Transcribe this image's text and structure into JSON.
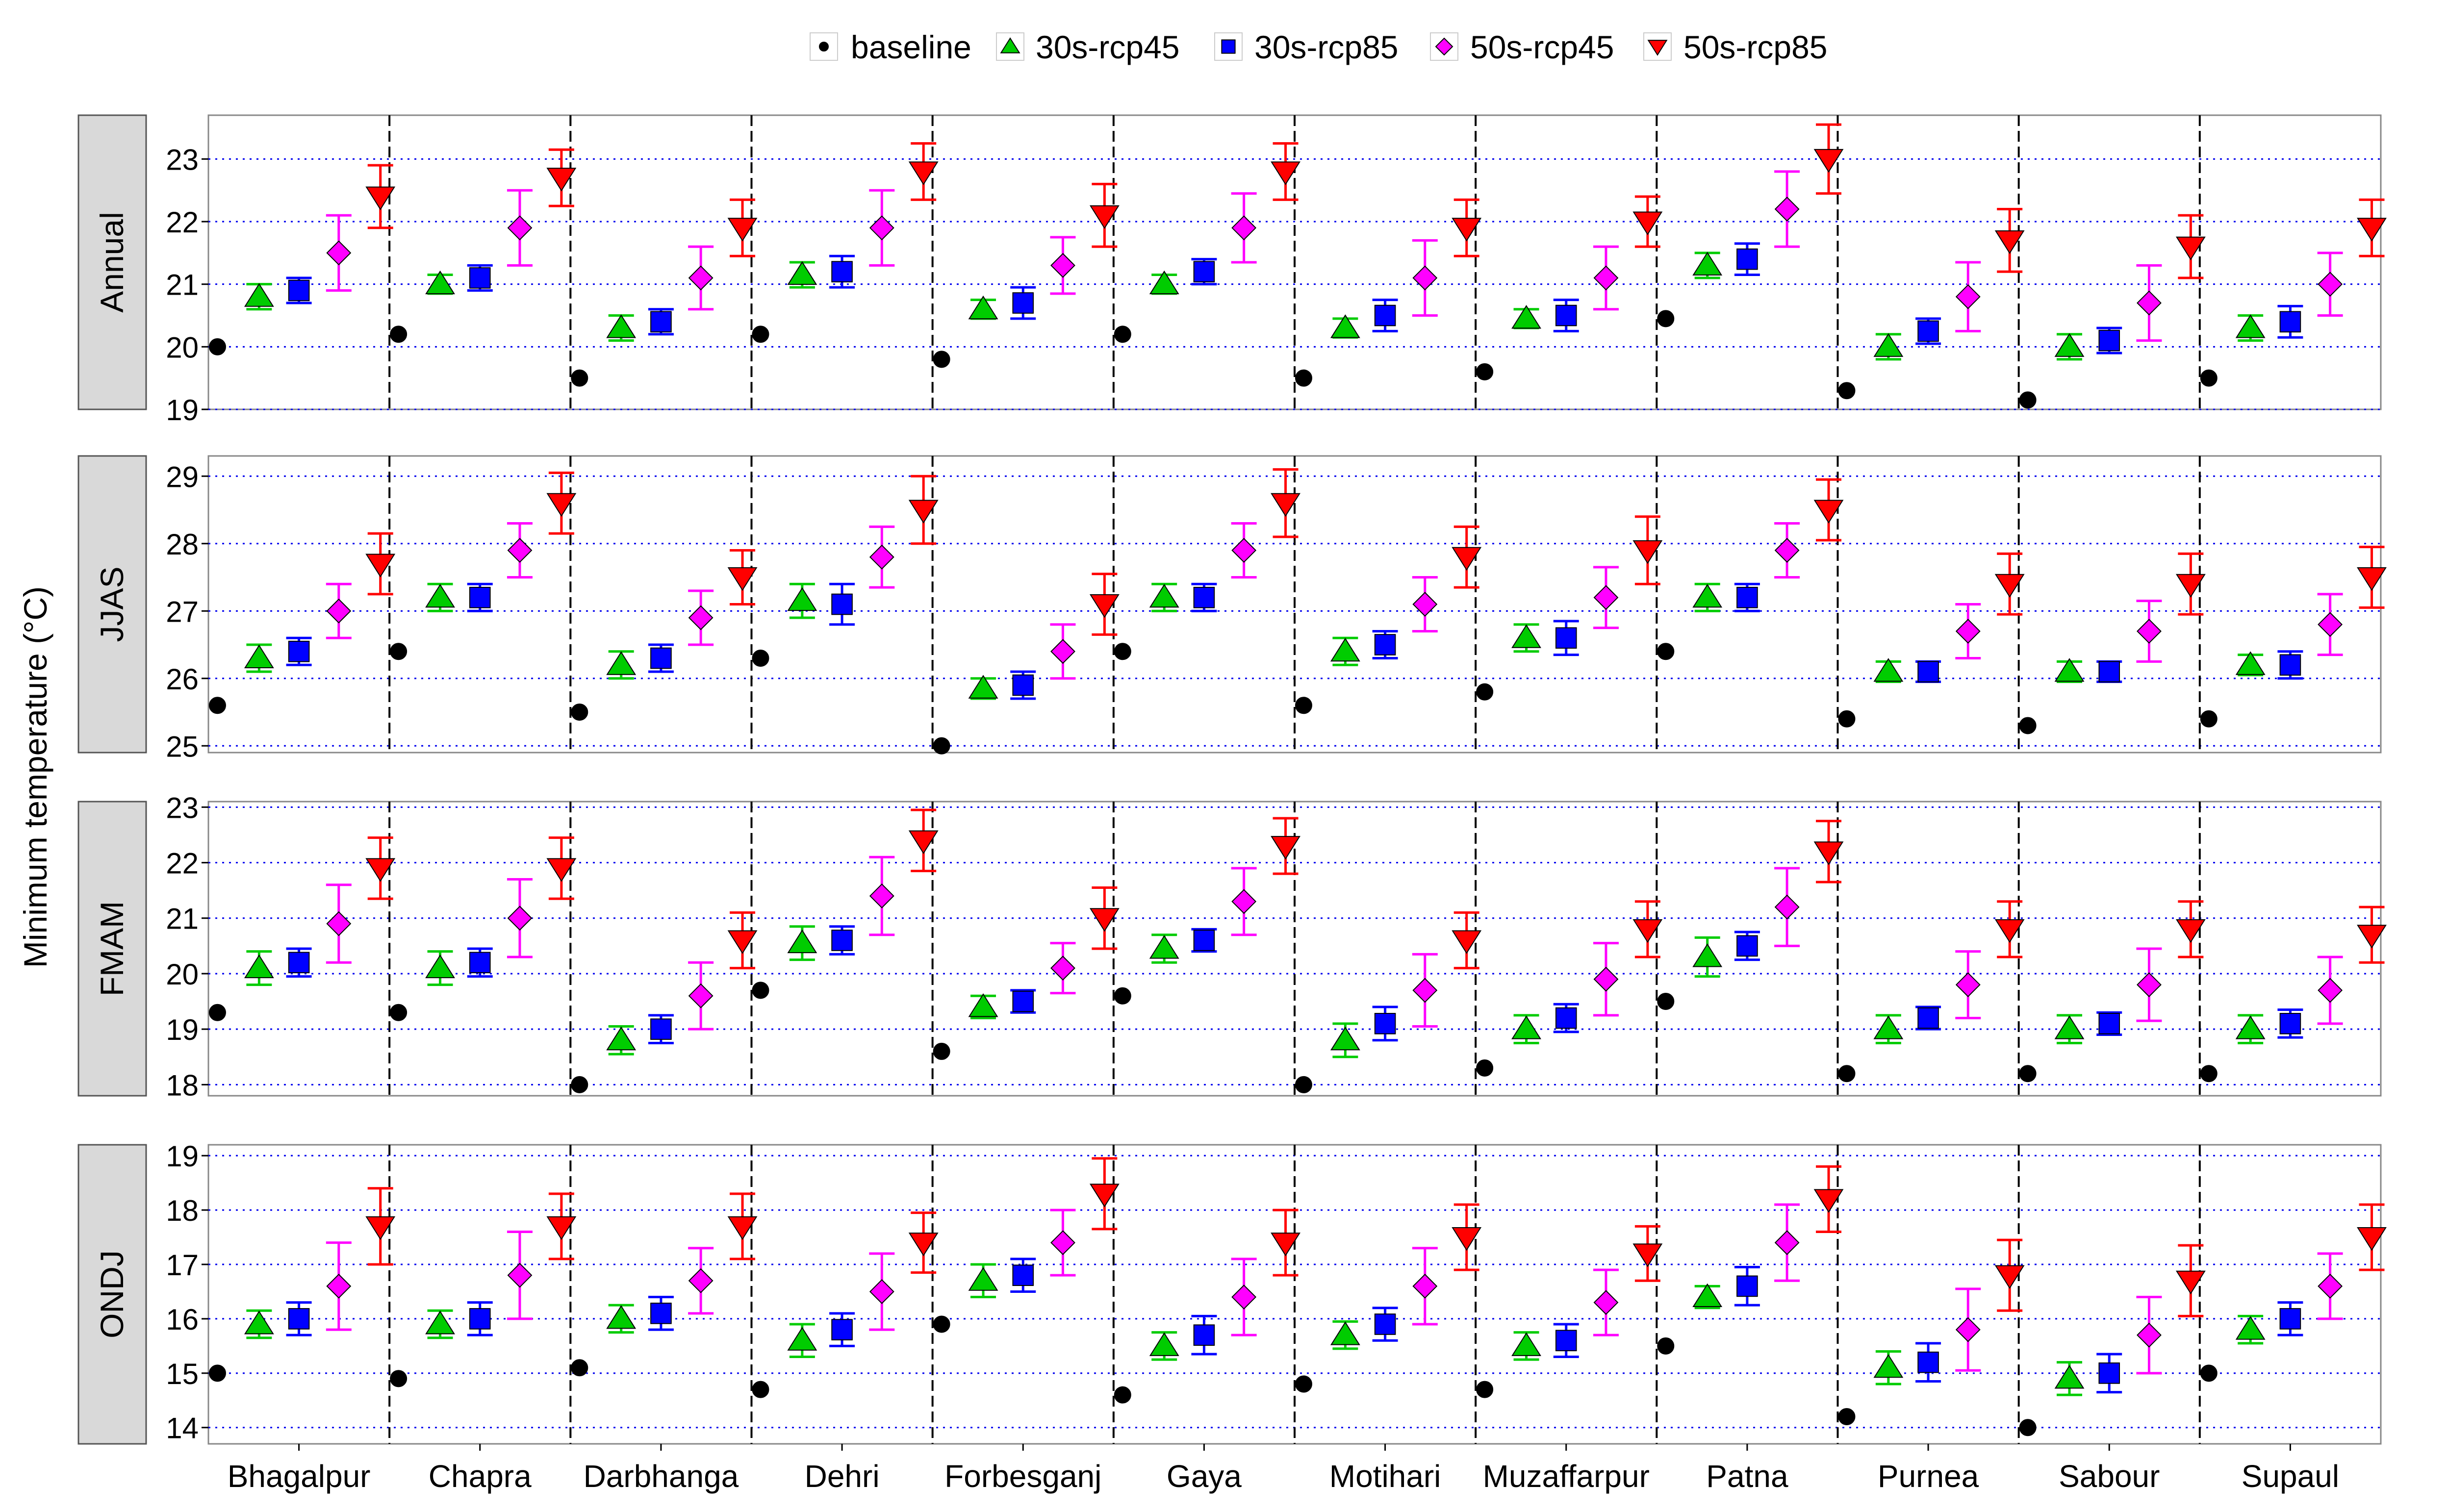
{
  "chart_data": {
    "type": "scatter",
    "title": "",
    "ylabel": "Minimum  temperature (°C)",
    "xlabel": "",
    "legend_position": "top",
    "grid": "horizontal dotted",
    "categories": [
      "Bhagalpur",
      "Chapra",
      "Darbhanga",
      "Dehri",
      "Forbesganj",
      "Gaya",
      "Motihari",
      "Muzaffarpur",
      "Patna",
      "Purnea",
      "Sabour",
      "Supaul"
    ],
    "series": [
      {
        "name": "baseline",
        "marker": "circle",
        "color": "#000000"
      },
      {
        "name": "30s-rcp45",
        "marker": "triangle-up",
        "color": "#00cc00"
      },
      {
        "name": "30s-rcp85",
        "marker": "square",
        "color": "#0000ff"
      },
      {
        "name": "50s-rcp45",
        "marker": "diamond",
        "color": "#ff00ff"
      },
      {
        "name": "50s-rcp85",
        "marker": "triangle-down",
        "color": "#ff0000"
      }
    ],
    "panels": [
      {
        "label": "Annual",
        "ylim": [
          19,
          23.7
        ],
        "yticks": [
          "19",
          "20",
          "21",
          "22",
          "23"
        ],
        "values": {
          "baseline": [
            20.0,
            20.2,
            19.5,
            20.2,
            19.8,
            20.2,
            19.5,
            19.6,
            20.45,
            19.3,
            19.15,
            19.5
          ],
          "30s-rcp45": [
            20.8,
            21.0,
            20.3,
            21.15,
            20.6,
            21.0,
            20.3,
            20.45,
            21.3,
            20.0,
            20.0,
            20.3
          ],
          "30s-rcp85": [
            20.9,
            21.1,
            20.4,
            21.2,
            20.7,
            21.2,
            20.5,
            20.5,
            21.4,
            20.25,
            20.1,
            20.4
          ],
          "50s-rcp45": [
            21.5,
            21.9,
            21.1,
            21.9,
            21.3,
            21.9,
            21.1,
            21.1,
            22.2,
            20.8,
            20.7,
            21.0
          ],
          "50s-rcp85": [
            22.4,
            22.7,
            21.9,
            22.8,
            22.1,
            22.8,
            21.9,
            22.0,
            23.0,
            21.7,
            21.6,
            21.9
          ]
        },
        "err": {
          "30s-rcp45": [
            0.2,
            0.15,
            0.2,
            0.2,
            0.15,
            0.15,
            0.15,
            0.15,
            0.2,
            0.2,
            0.2,
            0.2
          ],
          "30s-rcp85": [
            0.2,
            0.2,
            0.2,
            0.25,
            0.25,
            0.2,
            0.25,
            0.25,
            0.25,
            0.2,
            0.2,
            0.25
          ],
          "50s-rcp45": [
            0.6,
            0.6,
            0.5,
            0.6,
            0.45,
            0.55,
            0.6,
            0.5,
            0.6,
            0.55,
            0.6,
            0.5
          ],
          "50s-rcp85": [
            0.5,
            0.45,
            0.45,
            0.45,
            0.5,
            0.45,
            0.45,
            0.4,
            0.55,
            0.5,
            0.5,
            0.45
          ]
        }
      },
      {
        "label": "JJAS",
        "ylim": [
          24.9,
          29.3
        ],
        "yticks": [
          "25",
          "26",
          "27",
          "28",
          "29"
        ],
        "values": {
          "baseline": [
            25.6,
            26.4,
            25.5,
            26.3,
            25.0,
            26.4,
            25.6,
            25.8,
            26.4,
            25.4,
            25.3,
            25.4
          ],
          "30s-rcp45": [
            26.3,
            27.2,
            26.2,
            27.15,
            25.85,
            27.2,
            26.4,
            26.6,
            27.2,
            26.1,
            26.1,
            26.2
          ],
          "30s-rcp85": [
            26.4,
            27.2,
            26.3,
            27.1,
            25.9,
            27.2,
            26.5,
            26.6,
            27.2,
            26.1,
            26.1,
            26.2
          ],
          "50s-rcp45": [
            27.0,
            27.9,
            26.9,
            27.8,
            26.4,
            27.9,
            27.1,
            27.2,
            27.9,
            26.7,
            26.7,
            26.8
          ],
          "50s-rcp85": [
            27.7,
            28.6,
            27.5,
            28.5,
            27.1,
            28.6,
            27.8,
            27.9,
            28.5,
            27.4,
            27.4,
            27.5
          ]
        },
        "err": {
          "30s-rcp45": [
            0.2,
            0.2,
            0.2,
            0.25,
            0.15,
            0.2,
            0.2,
            0.2,
            0.2,
            0.15,
            0.15,
            0.15
          ],
          "30s-rcp85": [
            0.2,
            0.2,
            0.2,
            0.3,
            0.2,
            0.2,
            0.2,
            0.25,
            0.2,
            0.15,
            0.15,
            0.2
          ],
          "50s-rcp45": [
            0.4,
            0.4,
            0.4,
            0.45,
            0.4,
            0.4,
            0.4,
            0.45,
            0.4,
            0.4,
            0.45,
            0.45
          ],
          "50s-rcp85": [
            0.45,
            0.45,
            0.4,
            0.5,
            0.45,
            0.5,
            0.45,
            0.5,
            0.45,
            0.45,
            0.45,
            0.45
          ]
        }
      },
      {
        "label": "FMAM",
        "ylim": [
          17.8,
          23.1
        ],
        "yticks": [
          "18",
          "19",
          "20",
          "21",
          "22",
          "23"
        ],
        "values": {
          "baseline": [
            19.3,
            19.3,
            18.0,
            19.7,
            18.6,
            19.6,
            18.0,
            18.3,
            19.5,
            18.2,
            18.2,
            18.2
          ],
          "30s-rcp45": [
            20.1,
            20.1,
            18.8,
            20.55,
            19.4,
            20.45,
            18.8,
            19.0,
            20.3,
            19.0,
            19.0,
            19.0
          ],
          "30s-rcp85": [
            20.2,
            20.2,
            19.0,
            20.6,
            19.5,
            20.6,
            19.1,
            19.2,
            20.5,
            19.2,
            19.1,
            19.1
          ],
          "50s-rcp45": [
            20.9,
            21.0,
            19.6,
            21.4,
            20.1,
            21.3,
            19.7,
            19.9,
            21.2,
            19.8,
            19.8,
            19.7
          ],
          "50s-rcp85": [
            21.9,
            21.9,
            20.6,
            22.4,
            21.0,
            22.3,
            20.6,
            20.8,
            22.2,
            20.8,
            20.8,
            20.7
          ]
        },
        "err": {
          "30s-rcp45": [
            0.3,
            0.3,
            0.25,
            0.3,
            0.2,
            0.25,
            0.3,
            0.25,
            0.35,
            0.25,
            0.25,
            0.25
          ],
          "30s-rcp85": [
            0.25,
            0.25,
            0.25,
            0.25,
            0.2,
            0.2,
            0.3,
            0.25,
            0.25,
            0.2,
            0.2,
            0.25
          ],
          "50s-rcp45": [
            0.7,
            0.7,
            0.6,
            0.7,
            0.45,
            0.6,
            0.65,
            0.65,
            0.7,
            0.6,
            0.65,
            0.6
          ],
          "50s-rcp85": [
            0.55,
            0.55,
            0.5,
            0.55,
            0.55,
            0.5,
            0.5,
            0.5,
            0.55,
            0.5,
            0.5,
            0.5
          ]
        }
      },
      {
        "label": "ONDJ",
        "ylim": [
          13.7,
          19.2
        ],
        "yticks": [
          "14",
          "15",
          "16",
          "17",
          "18",
          "19"
        ],
        "values": {
          "baseline": [
            15.0,
            14.9,
            15.1,
            14.7,
            15.9,
            14.6,
            14.8,
            14.7,
            15.5,
            14.2,
            14.0,
            15.0
          ],
          "30s-rcp45": [
            15.9,
            15.9,
            16.0,
            15.6,
            16.7,
            15.5,
            15.7,
            15.5,
            16.4,
            15.1,
            14.9,
            15.8
          ],
          "30s-rcp85": [
            16.0,
            16.0,
            16.1,
            15.8,
            16.8,
            15.7,
            15.9,
            15.6,
            16.6,
            15.2,
            15.0,
            16.0
          ],
          "50s-rcp45": [
            16.6,
            16.8,
            16.7,
            16.5,
            17.4,
            16.4,
            16.6,
            16.3,
            17.4,
            15.8,
            15.7,
            16.6
          ],
          "50s-rcp85": [
            17.7,
            17.7,
            17.7,
            17.4,
            18.3,
            17.4,
            17.5,
            17.2,
            18.2,
            16.8,
            16.7,
            17.5
          ]
        },
        "err": {
          "30s-rcp45": [
            0.25,
            0.25,
            0.25,
            0.3,
            0.3,
            0.25,
            0.25,
            0.25,
            0.2,
            0.3,
            0.3,
            0.25
          ],
          "30s-rcp85": [
            0.3,
            0.3,
            0.3,
            0.3,
            0.3,
            0.35,
            0.3,
            0.3,
            0.35,
            0.35,
            0.35,
            0.3
          ],
          "50s-rcp45": [
            0.8,
            0.8,
            0.6,
            0.7,
            0.6,
            0.7,
            0.7,
            0.6,
            0.7,
            0.75,
            0.7,
            0.6
          ],
          "50s-rcp85": [
            0.7,
            0.6,
            0.6,
            0.55,
            0.65,
            0.6,
            0.6,
            0.5,
            0.6,
            0.65,
            0.65,
            0.6
          ]
        }
      }
    ]
  }
}
